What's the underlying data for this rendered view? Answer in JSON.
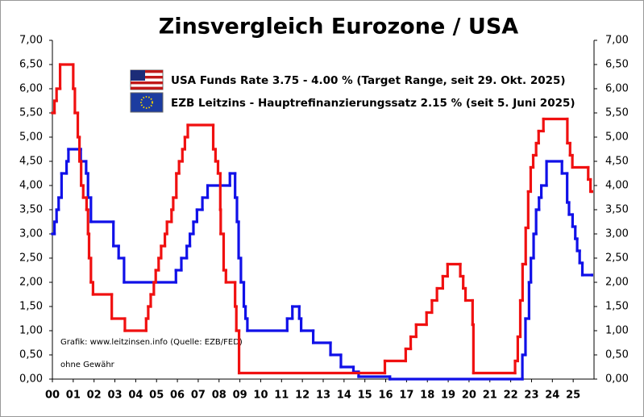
{
  "chart_data": {
    "type": "step-line",
    "title": "Zinsvergleich Eurozone / USA",
    "annotations": [
      "Grafik: www.leitzinsen.info (Quelle: EZB/FED)",
      "ohne Gewähr"
    ],
    "xlim": [
      2000,
      2026
    ],
    "xticks": [
      {
        "value": 2000,
        "label": "00"
      },
      {
        "value": 2001,
        "label": "01"
      },
      {
        "value": 2002,
        "label": "02"
      },
      {
        "value": 2003,
        "label": "03"
      },
      {
        "value": 2004,
        "label": "04"
      },
      {
        "value": 2005,
        "label": "05"
      },
      {
        "value": 2006,
        "label": "06"
      },
      {
        "value": 2007,
        "label": "07"
      },
      {
        "value": 2008,
        "label": "08"
      },
      {
        "value": 2009,
        "label": "09"
      },
      {
        "value": 2010,
        "label": "10"
      },
      {
        "value": 2011,
        "label": "11"
      },
      {
        "value": 2012,
        "label": "12"
      },
      {
        "value": 2013,
        "label": "13"
      },
      {
        "value": 2014,
        "label": "14"
      },
      {
        "value": 2015,
        "label": "15"
      },
      {
        "value": 2016,
        "label": "16"
      },
      {
        "value": 2017,
        "label": "17"
      },
      {
        "value": 2018,
        "label": "18"
      },
      {
        "value": 2019,
        "label": "19"
      },
      {
        "value": 2020,
        "label": "20"
      },
      {
        "value": 2021,
        "label": "21"
      },
      {
        "value": 2022,
        "label": "22"
      },
      {
        "value": 2023,
        "label": "23"
      },
      {
        "value": 2024,
        "label": "24"
      },
      {
        "value": 2025,
        "label": "25"
      }
    ],
    "ylim": [
      0,
      7
    ],
    "yticks": [
      {
        "value": 0,
        "label": "0,00"
      },
      {
        "value": 0.5,
        "label": "0,50"
      },
      {
        "value": 1,
        "label": "1,00"
      },
      {
        "value": 1.5,
        "label": "1,50"
      },
      {
        "value": 2,
        "label": "2,00"
      },
      {
        "value": 2.5,
        "label": "2,50"
      },
      {
        "value": 3,
        "label": "3,00"
      },
      {
        "value": 3.5,
        "label": "3,50"
      },
      {
        "value": 4,
        "label": "4,00"
      },
      {
        "value": 4.5,
        "label": "4,50"
      },
      {
        "value": 5,
        "label": "5,00"
      },
      {
        "value": 5.5,
        "label": "5,50"
      },
      {
        "value": 6,
        "label": "6,00"
      },
      {
        "value": 6.5,
        "label": "6,50"
      },
      {
        "value": 7,
        "label": "7,00"
      }
    ],
    "y2lim": [
      0,
      7
    ],
    "y2ticks": [
      {
        "value": 0,
        "label": "0,00"
      },
      {
        "value": 0.5,
        "label": "0,50"
      },
      {
        "value": 1,
        "label": "1,00"
      },
      {
        "value": 1.5,
        "label": "1,50"
      },
      {
        "value": 2,
        "label": "2,00"
      },
      {
        "value": 2.5,
        "label": "2,50"
      },
      {
        "value": 3,
        "label": "3,00"
      },
      {
        "value": 3.5,
        "label": "3,50"
      },
      {
        "value": 4,
        "label": "4,00"
      },
      {
        "value": 4.5,
        "label": "4,50"
      },
      {
        "value": 5,
        "label": "5,00"
      },
      {
        "value": 5.5,
        "label": "5,50"
      },
      {
        "value": 6,
        "label": "6,00"
      },
      {
        "value": 6.5,
        "label": "6,50"
      },
      {
        "value": 7,
        "label": "7,00"
      }
    ],
    "grid": false,
    "series": [
      {
        "name": "USA Funds Rate 3.75 - 4.00 % (Target Range, seit 29. Okt. 2025)",
        "color": "#f01010",
        "x": [
          2000.0,
          2000.1,
          2000.2,
          2000.37,
          2001.0,
          2001.08,
          2001.22,
          2001.3,
          2001.38,
          2001.48,
          2001.64,
          2001.71,
          2001.76,
          2001.85,
          2001.95,
          2002.85,
          2003.48,
          2004.5,
          2004.6,
          2004.72,
          2004.87,
          2004.96,
          2005.1,
          2005.22,
          2005.4,
          2005.5,
          2005.72,
          2005.8,
          2005.95,
          2006.08,
          2006.24,
          2006.36,
          2006.5,
          2007.72,
          2007.83,
          2007.95,
          2008.06,
          2008.08,
          2008.22,
          2008.33,
          2008.77,
          2008.83,
          2008.96,
          2015.96,
          2016.96,
          2017.2,
          2017.46,
          2017.96,
          2018.22,
          2018.46,
          2018.74,
          2018.97,
          2019.58,
          2019.72,
          2019.83,
          2020.17,
          2020.21,
          2022.21,
          2022.34,
          2022.46,
          2022.57,
          2022.72,
          2022.84,
          2022.96,
          2023.08,
          2023.22,
          2023.34,
          2023.57,
          2024.72,
          2024.85,
          2024.96,
          2025.72,
          2025.83,
          2025.9
        ],
        "values": [
          5.5,
          5.75,
          6.0,
          6.5,
          6.0,
          5.5,
          5.0,
          4.5,
          4.0,
          3.75,
          3.5,
          3.0,
          2.5,
          2.0,
          1.75,
          1.25,
          1.0,
          1.25,
          1.5,
          1.75,
          2.0,
          2.25,
          2.5,
          2.75,
          3.0,
          3.25,
          3.5,
          3.75,
          4.25,
          4.5,
          4.75,
          5.0,
          5.25,
          4.75,
          4.5,
          4.25,
          3.5,
          3.0,
          2.25,
          2.0,
          1.5,
          1.0,
          0.125,
          0.375,
          0.625,
          0.875,
          1.125,
          1.375,
          1.625,
          1.875,
          2.125,
          2.375,
          2.125,
          1.875,
          1.625,
          1.125,
          0.125,
          0.375,
          0.875,
          1.625,
          2.375,
          3.125,
          3.875,
          4.375,
          4.625,
          4.875,
          5.125,
          5.375,
          4.875,
          4.625,
          4.375,
          4.125,
          3.875,
          3.875
        ]
      },
      {
        "name": "EZB Leitzins - Hauptrefinanzierungssatz  2.15 % (seit 5. Juni 2025)",
        "color": "#1010e8",
        "x": [
          2000.0,
          2000.1,
          2000.2,
          2000.3,
          2000.44,
          2000.68,
          2000.77,
          2001.36,
          2001.62,
          2001.71,
          2001.85,
          2002.93,
          2003.18,
          2003.44,
          2005.93,
          2006.19,
          2006.45,
          2006.6,
          2006.77,
          2006.94,
          2007.2,
          2007.45,
          2008.52,
          2008.77,
          2008.86,
          2008.94,
          2009.05,
          2009.19,
          2009.27,
          2009.36,
          2011.27,
          2011.52,
          2011.85,
          2011.94,
          2012.52,
          2013.35,
          2013.85,
          2014.45,
          2014.7,
          2016.2,
          2022.56,
          2022.71,
          2022.88,
          2022.97,
          2023.1,
          2023.22,
          2023.36,
          2023.47,
          2023.72,
          2024.46,
          2024.71,
          2024.8,
          2024.97,
          2025.1,
          2025.19,
          2025.31,
          2025.44,
          2025.9
        ],
        "values": [
          3.0,
          3.25,
          3.5,
          3.75,
          4.25,
          4.5,
          4.75,
          4.5,
          4.25,
          3.75,
          3.25,
          2.75,
          2.5,
          2.0,
          2.25,
          2.5,
          2.75,
          3.0,
          3.25,
          3.5,
          3.75,
          4.0,
          4.25,
          3.75,
          3.25,
          2.5,
          2.0,
          1.5,
          1.25,
          1.0,
          1.25,
          1.5,
          1.25,
          1.0,
          0.75,
          0.5,
          0.25,
          0.15,
          0.05,
          0.0,
          0.5,
          1.25,
          2.0,
          2.5,
          3.0,
          3.5,
          3.75,
          4.0,
          4.5,
          4.25,
          3.65,
          3.4,
          3.15,
          2.9,
          2.65,
          2.4,
          2.15,
          2.15
        ]
      }
    ]
  }
}
